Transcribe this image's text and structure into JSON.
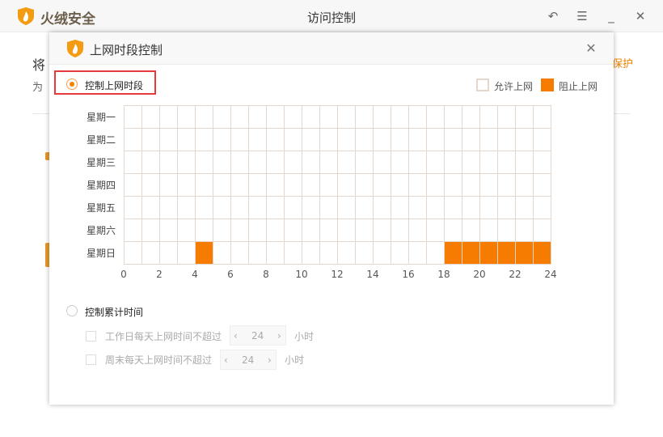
{
  "window": {
    "brand": "火绒安全",
    "title": "访问控制",
    "buttons": [
      "back-icon",
      "menu-icon",
      "minimize-icon",
      "close-icon"
    ]
  },
  "background": {
    "line1": "将",
    "line2": "为",
    "link": "保护"
  },
  "dialog": {
    "title": "上网时段控制",
    "mode1_label": "控制上网时段",
    "mode1_selected": true,
    "legend": {
      "allow": "允许上网",
      "block": "阻止上网",
      "block_color": "#f57c00"
    },
    "days": [
      "星期一",
      "星期二",
      "星期三",
      "星期四",
      "星期五",
      "星期六",
      "星期日"
    ],
    "hour_ticks": [
      "0",
      "2",
      "4",
      "6",
      "8",
      "10",
      "12",
      "14",
      "16",
      "18",
      "20",
      "22",
      "24"
    ],
    "blocked": {
      "星期日": [
        4,
        18,
        19,
        20,
        21,
        22,
        23
      ]
    },
    "mode2_label": "控制累计时间",
    "mode2_selected": false,
    "weekday": {
      "label": "工作日每天上网时间不超过",
      "value": "24",
      "unit": "小时"
    },
    "weekend": {
      "label": "周末每天上网时间不超过",
      "value": "24",
      "unit": "小时"
    }
  }
}
